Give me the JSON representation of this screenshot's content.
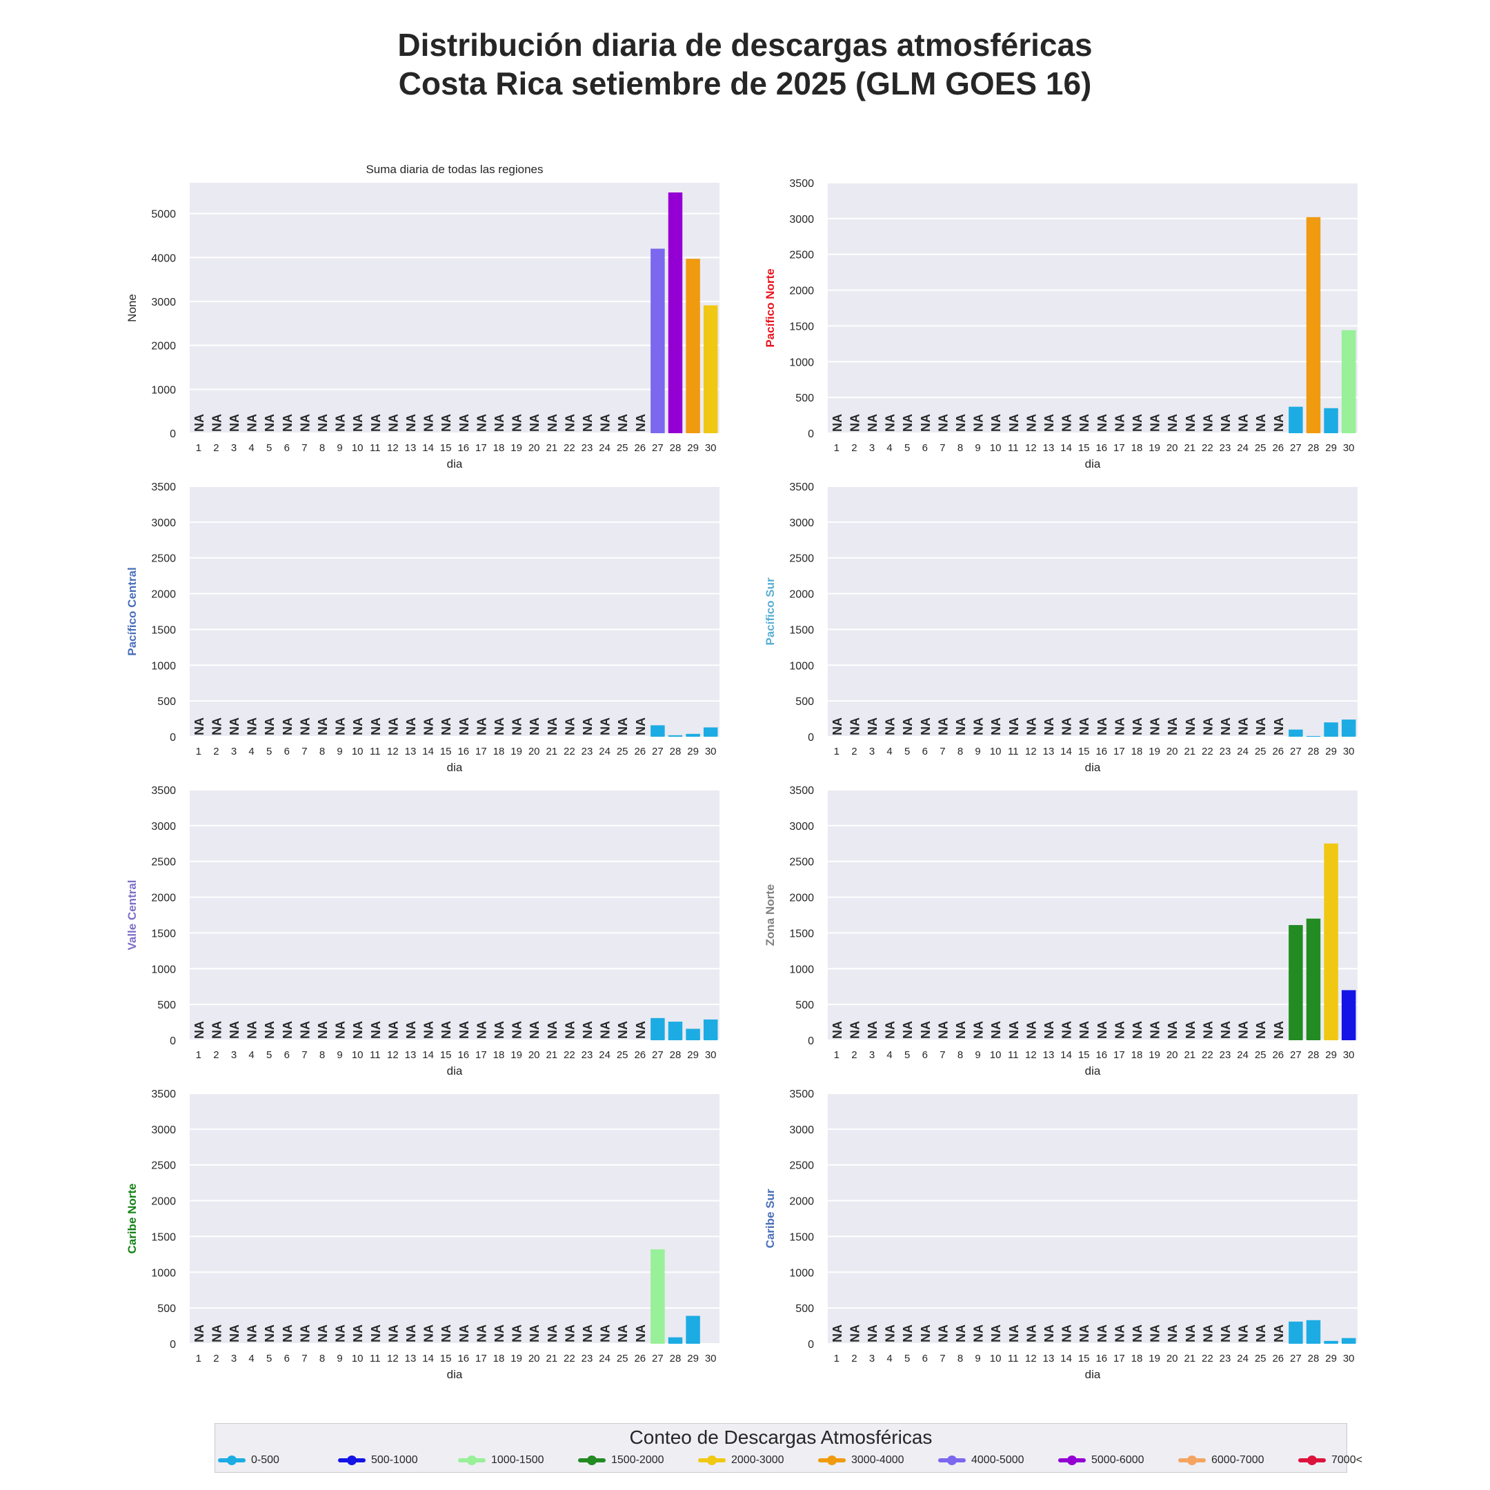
{
  "title_line1": "Distribución diaria de descargas atmosféricas",
  "title_line2": "Costa Rica setiembre de 2025 (GLM GOES 16)",
  "colors": {
    "plot_bg": "#eaeaf2",
    "grid": "#ffffff",
    "bins": {
      "0-500": "#1cace3",
      "500-1000": "#1414e6",
      "1000-1500": "#98f098",
      "1500-2000": "#228b22",
      "2000-3000": "#f0c814",
      "3000-4000": "#f09a10",
      "4000-5000": "#7b68ee",
      "5000-6000": "#9400d3",
      "6000-7000": "#f4a460",
      "7000<": "#dc143c"
    }
  },
  "chart_data": [
    {
      "type": "bar",
      "subtitle": "Suma diaria de todas las regiones",
      "ylabel": "None",
      "ylabel_color": "#262626",
      "xlabel": "dia",
      "ylim": [
        0,
        5700
      ],
      "yticks": [
        0,
        1000,
        2000,
        3000,
        4000,
        5000
      ],
      "categories": [
        "1",
        "2",
        "3",
        "4",
        "5",
        "6",
        "7",
        "8",
        "9",
        "10",
        "11",
        "12",
        "13",
        "14",
        "15",
        "16",
        "17",
        "18",
        "19",
        "20",
        "21",
        "22",
        "23",
        "24",
        "25",
        "26",
        "27",
        "28",
        "29",
        "30"
      ],
      "na_label": "NA",
      "values": [
        null,
        null,
        null,
        null,
        null,
        null,
        null,
        null,
        null,
        null,
        null,
        null,
        null,
        null,
        null,
        null,
        null,
        null,
        null,
        null,
        null,
        null,
        null,
        null,
        null,
        null,
        4200,
        5480,
        3970,
        2910
      ]
    },
    {
      "type": "bar",
      "ylabel": "Pacífico Norte",
      "ylabel_color": "#e8141e",
      "xlabel": "dia",
      "ylim": [
        0,
        3500
      ],
      "yticks": [
        0,
        500,
        1000,
        1500,
        2000,
        2500,
        3000,
        3500
      ],
      "categories": [
        "1",
        "2",
        "3",
        "4",
        "5",
        "6",
        "7",
        "8",
        "9",
        "10",
        "11",
        "12",
        "13",
        "14",
        "15",
        "16",
        "17",
        "18",
        "19",
        "20",
        "21",
        "22",
        "23",
        "24",
        "25",
        "26",
        "27",
        "28",
        "29",
        "30"
      ],
      "na_label": "NA",
      "values": [
        null,
        null,
        null,
        null,
        null,
        null,
        null,
        null,
        null,
        null,
        null,
        null,
        null,
        null,
        null,
        null,
        null,
        null,
        null,
        null,
        null,
        null,
        null,
        null,
        null,
        null,
        370,
        3020,
        350,
        1440
      ]
    },
    {
      "type": "bar",
      "ylabel": "Pacífico Central",
      "ylabel_color": "#4a6fb8",
      "xlabel": "dia",
      "ylim": [
        0,
        3500
      ],
      "yticks": [
        0,
        500,
        1000,
        1500,
        2000,
        2500,
        3000,
        3500
      ],
      "categories": [
        "1",
        "2",
        "3",
        "4",
        "5",
        "6",
        "7",
        "8",
        "9",
        "10",
        "11",
        "12",
        "13",
        "14",
        "15",
        "16",
        "17",
        "18",
        "19",
        "20",
        "21",
        "22",
        "23",
        "24",
        "25",
        "26",
        "27",
        "28",
        "29",
        "30"
      ],
      "na_label": "NA",
      "values": [
        null,
        null,
        null,
        null,
        null,
        null,
        null,
        null,
        null,
        null,
        null,
        null,
        null,
        null,
        null,
        null,
        null,
        null,
        null,
        null,
        null,
        null,
        null,
        null,
        null,
        null,
        160,
        20,
        40,
        130
      ]
    },
    {
      "type": "bar",
      "ylabel": "Pacífico Sur",
      "ylabel_color": "#5aaed4",
      "xlabel": "dia",
      "ylim": [
        0,
        3500
      ],
      "yticks": [
        0,
        500,
        1000,
        1500,
        2000,
        2500,
        3000,
        3500
      ],
      "categories": [
        "1",
        "2",
        "3",
        "4",
        "5",
        "6",
        "7",
        "8",
        "9",
        "10",
        "11",
        "12",
        "13",
        "14",
        "15",
        "16",
        "17",
        "18",
        "19",
        "20",
        "21",
        "22",
        "23",
        "24",
        "25",
        "26",
        "27",
        "28",
        "29",
        "30"
      ],
      "na_label": "NA",
      "values": [
        null,
        null,
        null,
        null,
        null,
        null,
        null,
        null,
        null,
        null,
        null,
        null,
        null,
        null,
        null,
        null,
        null,
        null,
        null,
        null,
        null,
        null,
        null,
        null,
        null,
        null,
        100,
        10,
        200,
        240
      ]
    },
    {
      "type": "bar",
      "ylabel": "Valle Central",
      "ylabel_color": "#7b6fc7",
      "xlabel": "dia",
      "ylim": [
        0,
        3500
      ],
      "yticks": [
        0,
        500,
        1000,
        1500,
        2000,
        2500,
        3000,
        3500
      ],
      "categories": [
        "1",
        "2",
        "3",
        "4",
        "5",
        "6",
        "7",
        "8",
        "9",
        "10",
        "11",
        "12",
        "13",
        "14",
        "15",
        "16",
        "17",
        "18",
        "19",
        "20",
        "21",
        "22",
        "23",
        "24",
        "25",
        "26",
        "27",
        "28",
        "29",
        "30"
      ],
      "na_label": "NA",
      "values": [
        null,
        null,
        null,
        null,
        null,
        null,
        null,
        null,
        null,
        null,
        null,
        null,
        null,
        null,
        null,
        null,
        null,
        null,
        null,
        null,
        null,
        null,
        null,
        null,
        null,
        null,
        310,
        260,
        160,
        290
      ]
    },
    {
      "type": "bar",
      "ylabel": "Zona Norte",
      "ylabel_color": "#808080",
      "xlabel": "dia",
      "ylim": [
        0,
        3500
      ],
      "yticks": [
        0,
        500,
        1000,
        1500,
        2000,
        2500,
        3000,
        3500
      ],
      "categories": [
        "1",
        "2",
        "3",
        "4",
        "5",
        "6",
        "7",
        "8",
        "9",
        "10",
        "11",
        "12",
        "13",
        "14",
        "15",
        "16",
        "17",
        "18",
        "19",
        "20",
        "21",
        "22",
        "23",
        "24",
        "25",
        "26",
        "27",
        "28",
        "29",
        "30"
      ],
      "na_label": "NA",
      "values": [
        null,
        null,
        null,
        null,
        null,
        null,
        null,
        null,
        null,
        null,
        null,
        null,
        null,
        null,
        null,
        null,
        null,
        null,
        null,
        null,
        null,
        null,
        null,
        null,
        null,
        null,
        1610,
        1700,
        2750,
        700
      ]
    },
    {
      "type": "bar",
      "ylabel": "Caribe Norte",
      "ylabel_color": "#148214",
      "xlabel": "dia",
      "ylim": [
        0,
        3500
      ],
      "yticks": [
        0,
        500,
        1000,
        1500,
        2000,
        2500,
        3000,
        3500
      ],
      "categories": [
        "1",
        "2",
        "3",
        "4",
        "5",
        "6",
        "7",
        "8",
        "9",
        "10",
        "11",
        "12",
        "13",
        "14",
        "15",
        "16",
        "17",
        "18",
        "19",
        "20",
        "21",
        "22",
        "23",
        "24",
        "25",
        "26",
        "27",
        "28",
        "29",
        "30"
      ],
      "na_label": "NA",
      "values": [
        null,
        null,
        null,
        null,
        null,
        null,
        null,
        null,
        null,
        null,
        null,
        null,
        null,
        null,
        null,
        null,
        null,
        null,
        null,
        null,
        null,
        null,
        null,
        null,
        null,
        null,
        1320,
        90,
        390,
        0
      ]
    },
    {
      "type": "bar",
      "ylabel": "Caribe Sur",
      "ylabel_color": "#4a6fb8",
      "xlabel": "dia",
      "ylim": [
        0,
        3500
      ],
      "yticks": [
        0,
        500,
        1000,
        1500,
        2000,
        2500,
        3000,
        3500
      ],
      "categories": [
        "1",
        "2",
        "3",
        "4",
        "5",
        "6",
        "7",
        "8",
        "9",
        "10",
        "11",
        "12",
        "13",
        "14",
        "15",
        "16",
        "17",
        "18",
        "19",
        "20",
        "21",
        "22",
        "23",
        "24",
        "25",
        "26",
        "27",
        "28",
        "29",
        "30"
      ],
      "na_label": "NA",
      "values": [
        null,
        null,
        null,
        null,
        null,
        null,
        null,
        null,
        null,
        null,
        null,
        null,
        null,
        null,
        null,
        null,
        null,
        null,
        null,
        null,
        null,
        null,
        null,
        null,
        null,
        null,
        310,
        330,
        40,
        80
      ]
    }
  ],
  "legend": {
    "title": "Conteo de Descargas Atmosféricas",
    "placement": "bottom-center",
    "items": [
      {
        "label": "0-500",
        "color": "#1cace3"
      },
      {
        "label": "500-1000",
        "color": "#1414e6"
      },
      {
        "label": "1000-1500",
        "color": "#98f098"
      },
      {
        "label": "1500-2000",
        "color": "#228b22"
      },
      {
        "label": "2000-3000",
        "color": "#f0c814"
      },
      {
        "label": "3000-4000",
        "color": "#f09a10"
      },
      {
        "label": "4000-5000",
        "color": "#7b68ee"
      },
      {
        "label": "5000-6000",
        "color": "#9400d3"
      },
      {
        "label": "6000-7000",
        "color": "#f4a460"
      },
      {
        "label": "7000<",
        "color": "#dc143c"
      }
    ]
  }
}
